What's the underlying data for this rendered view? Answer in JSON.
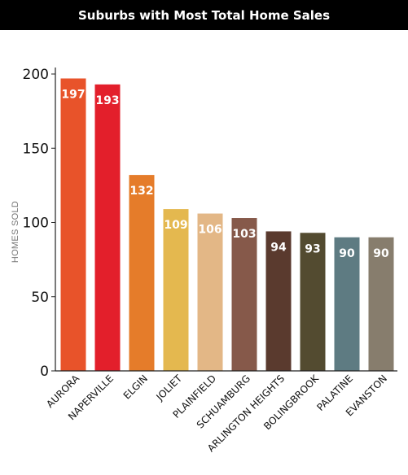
{
  "chart_data": {
    "type": "bar",
    "title": "Suburbs with Most Total Home Sales",
    "ylabel": "HOMES SOLD",
    "xlabel": "",
    "ylim": [
      0,
      200
    ],
    "yticks": [
      0,
      50,
      100,
      150,
      200
    ],
    "grid": false,
    "categories": [
      "AURORA",
      "NAPERVILLE",
      "ELGIN",
      "JOLIET",
      "PLAINFIELD",
      "SCHUAMBURG",
      "ARLINGTON HEIGHTS",
      "BOLINGBROOK",
      "PALATINE",
      "EVANSTON"
    ],
    "values": [
      197,
      193,
      132,
      109,
      106,
      103,
      94,
      93,
      90,
      90
    ],
    "colors": [
      "#e8532a",
      "#e31f2b",
      "#e57c2a",
      "#e4b84f",
      "#e3b786",
      "#86594a",
      "#5a3a2e",
      "#534b30",
      "#5e7b82",
      "#877d6d"
    ],
    "data_labels": [
      "197",
      "193",
      "132",
      "109",
      "106",
      "103",
      "94",
      "93",
      "90",
      "90"
    ]
  }
}
